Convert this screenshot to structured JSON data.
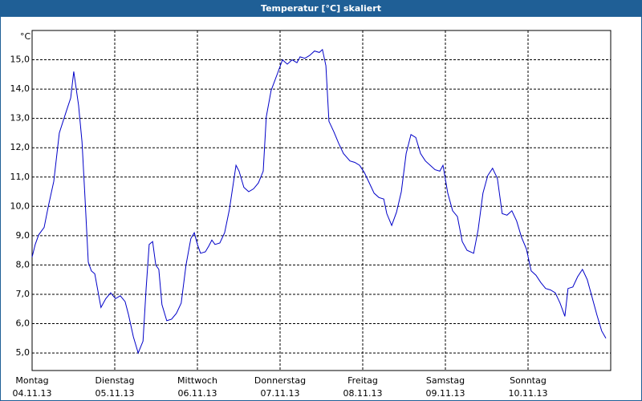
{
  "chart_data": {
    "type": "line",
    "title": "Temperatur [°C] skaliert",
    "y_unit": "°C",
    "x": [
      0,
      0.9,
      1.9,
      3.5,
      4.7,
      6.3,
      7.9,
      9.8,
      11.2,
      12.1,
      13.5,
      14.5,
      15.4,
      16.3,
      17.2,
      18.2,
      20.0,
      21.4,
      22.8,
      24.2,
      25.6,
      27.0,
      28.0,
      29.4,
      30.8,
      32.2,
      33.1,
      34.0,
      35.0,
      35.9,
      36.8,
      37.7,
      39.1,
      40.5,
      41.9,
      43.3,
      44.7,
      46.1,
      47.1,
      48.0,
      48.9,
      50.3,
      51.3,
      52.2,
      53.1,
      54.5,
      55.9,
      57.3,
      59.2,
      60.1,
      61.5,
      62.9,
      64.3,
      65.7,
      67.1,
      68.0,
      69.4,
      71.3,
      72.7,
      74.1,
      75.5,
      76.9,
      77.8,
      79.2,
      80.6,
      82.0,
      83.4,
      84.3,
      85.3,
      86.2,
      87.6,
      89.0,
      90.4,
      92.3,
      93.7,
      95.1,
      96.5,
      97.9,
      99.3,
      100.7,
      102.1,
      103.0,
      104.4,
      105.8,
      107.2,
      108.6,
      110.0,
      111.4,
      112.8,
      114.2,
      115.6,
      117.0,
      118.4,
      119.3,
      120.7,
      122.1,
      123.5,
      124.9,
      126.3,
      128.2,
      129.5,
      130.9,
      132.3,
      133.7,
      135.1,
      136.5,
      137.9,
      139.3,
      140.7,
      142.1,
      143.5,
      144.9,
      146.3,
      147.7,
      149.1,
      150.5,
      151.9,
      153.3,
      154.7,
      155.6,
      157.0,
      158.4,
      159.8,
      161.2,
      162.6,
      164.0,
      165.4,
      166.6
    ],
    "series": [
      {
        "name": "Temperatur",
        "color": "#0000c8",
        "values": [
          8.27,
          8.7,
          9.03,
          9.28,
          10.0,
          10.85,
          12.5,
          13.2,
          13.7,
          14.6,
          13.45,
          12.2,
          10.2,
          8.1,
          7.8,
          7.7,
          6.55,
          6.85,
          7.05,
          6.85,
          6.95,
          6.75,
          6.3,
          5.55,
          5.0,
          5.4,
          7.2,
          8.7,
          8.8,
          8.0,
          7.85,
          6.65,
          6.1,
          6.15,
          6.35,
          6.7,
          8.0,
          8.9,
          9.1,
          8.7,
          8.4,
          8.45,
          8.65,
          8.85,
          8.7,
          8.75,
          9.1,
          9.9,
          11.4,
          11.2,
          10.65,
          10.5,
          10.6,
          10.8,
          11.2,
          13.05,
          13.95,
          14.55,
          15.0,
          14.85,
          15.0,
          14.9,
          15.1,
          15.05,
          15.15,
          15.3,
          15.25,
          15.35,
          14.8,
          12.9,
          12.55,
          12.15,
          11.8,
          11.55,
          11.5,
          11.4,
          11.15,
          10.8,
          10.45,
          10.3,
          10.25,
          9.75,
          9.35,
          9.8,
          10.5,
          11.8,
          12.45,
          12.35,
          11.8,
          11.55,
          11.4,
          11.25,
          11.2,
          11.4,
          10.45,
          9.85,
          9.65,
          8.8,
          8.5,
          8.4,
          9.2,
          10.45,
          11.05,
          11.3,
          10.95,
          9.75,
          9.7,
          9.85,
          9.5,
          8.95,
          8.55,
          7.8,
          7.65,
          7.4,
          7.2,
          7.15,
          7.05,
          6.7,
          6.25,
          7.2,
          7.25,
          7.6,
          7.85,
          7.5,
          6.9,
          6.3,
          5.75,
          5.5
        ]
      }
    ],
    "xlim": [
      0,
      168
    ],
    "xticks": [
      {
        "value": 0,
        "label": "Montag"
      },
      {
        "value": 24,
        "label": "Dienstag"
      },
      {
        "value": 48,
        "label": "Mittwoch"
      },
      {
        "value": 72,
        "label": "Donnerstag"
      },
      {
        "value": 96,
        "label": "Freitag"
      },
      {
        "value": 120,
        "label": "Samstag"
      },
      {
        "value": 144,
        "label": "Sonntag"
      }
    ],
    "xtick_dates": [
      "04.11.13",
      "05.11.13",
      "06.11.13",
      "07.11.13",
      "08.11.13",
      "09.11.13",
      "10.11.13"
    ],
    "ylim": [
      4.4,
      16.0
    ],
    "yticks": [
      {
        "value": 5,
        "label": "5,0"
      },
      {
        "value": 6,
        "label": "6,0"
      },
      {
        "value": 7,
        "label": "7,0"
      },
      {
        "value": 8,
        "label": "8,0"
      },
      {
        "value": 9,
        "label": "9,0"
      },
      {
        "value": 10,
        "label": "10,0"
      },
      {
        "value": 11,
        "label": "11,0"
      },
      {
        "value": 12,
        "label": "12,0"
      },
      {
        "value": 13,
        "label": "13,0"
      },
      {
        "value": 14,
        "label": "14,0"
      },
      {
        "value": 15,
        "label": "15,0"
      }
    ],
    "grid": true
  }
}
